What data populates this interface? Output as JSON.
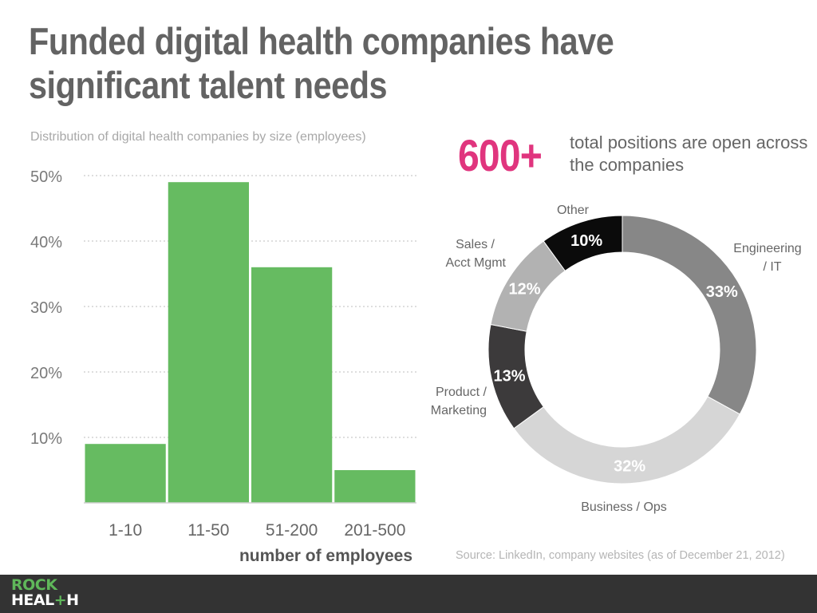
{
  "title": "Funded digital health companies have significant talent needs",
  "bar_subtitle": "Distribution of digital health companies by size (employees)",
  "highlight": {
    "number": "600+",
    "text": "total positions are open across the companies"
  },
  "source": "Source: LinkedIn, company websites (as of December 21, 2012)",
  "logo": {
    "line1": "ROCK",
    "line2_prefix": "HEAL",
    "line2_plus": "+",
    "line2_suffix": "H"
  },
  "colors": {
    "bar": "#66bb61",
    "accent": "#e0357e",
    "footer": "#333333"
  },
  "chart_data": [
    {
      "type": "bar",
      "categories": [
        "1-10",
        "11-50",
        "51-200",
        "201-500"
      ],
      "values": [
        9,
        49,
        36,
        5
      ],
      "xlabel": "number of employees",
      "ylabel": "",
      "ylim": [
        0,
        50
      ],
      "yticks": [
        "10%",
        "20%",
        "30%",
        "40%",
        "50%"
      ],
      "grid": true
    },
    {
      "type": "pie",
      "donut": true,
      "slices": [
        {
          "label": "Engineering / IT",
          "value": 33,
          "value_label": "33%",
          "color": "#878787"
        },
        {
          "label": "Business / Ops",
          "value": 32,
          "value_label": "32%",
          "color": "#d6d6d6"
        },
        {
          "label": "Product / Marketing",
          "value": 13,
          "value_label": "13%",
          "color": "#3c3a3b"
        },
        {
          "label": "Sales / Acct Mgmt",
          "value": 12,
          "value_label": "12%",
          "color": "#b2b2b2"
        },
        {
          "label": "Other",
          "value": 10,
          "value_label": "10%",
          "color": "#0b0b0b"
        }
      ]
    }
  ]
}
